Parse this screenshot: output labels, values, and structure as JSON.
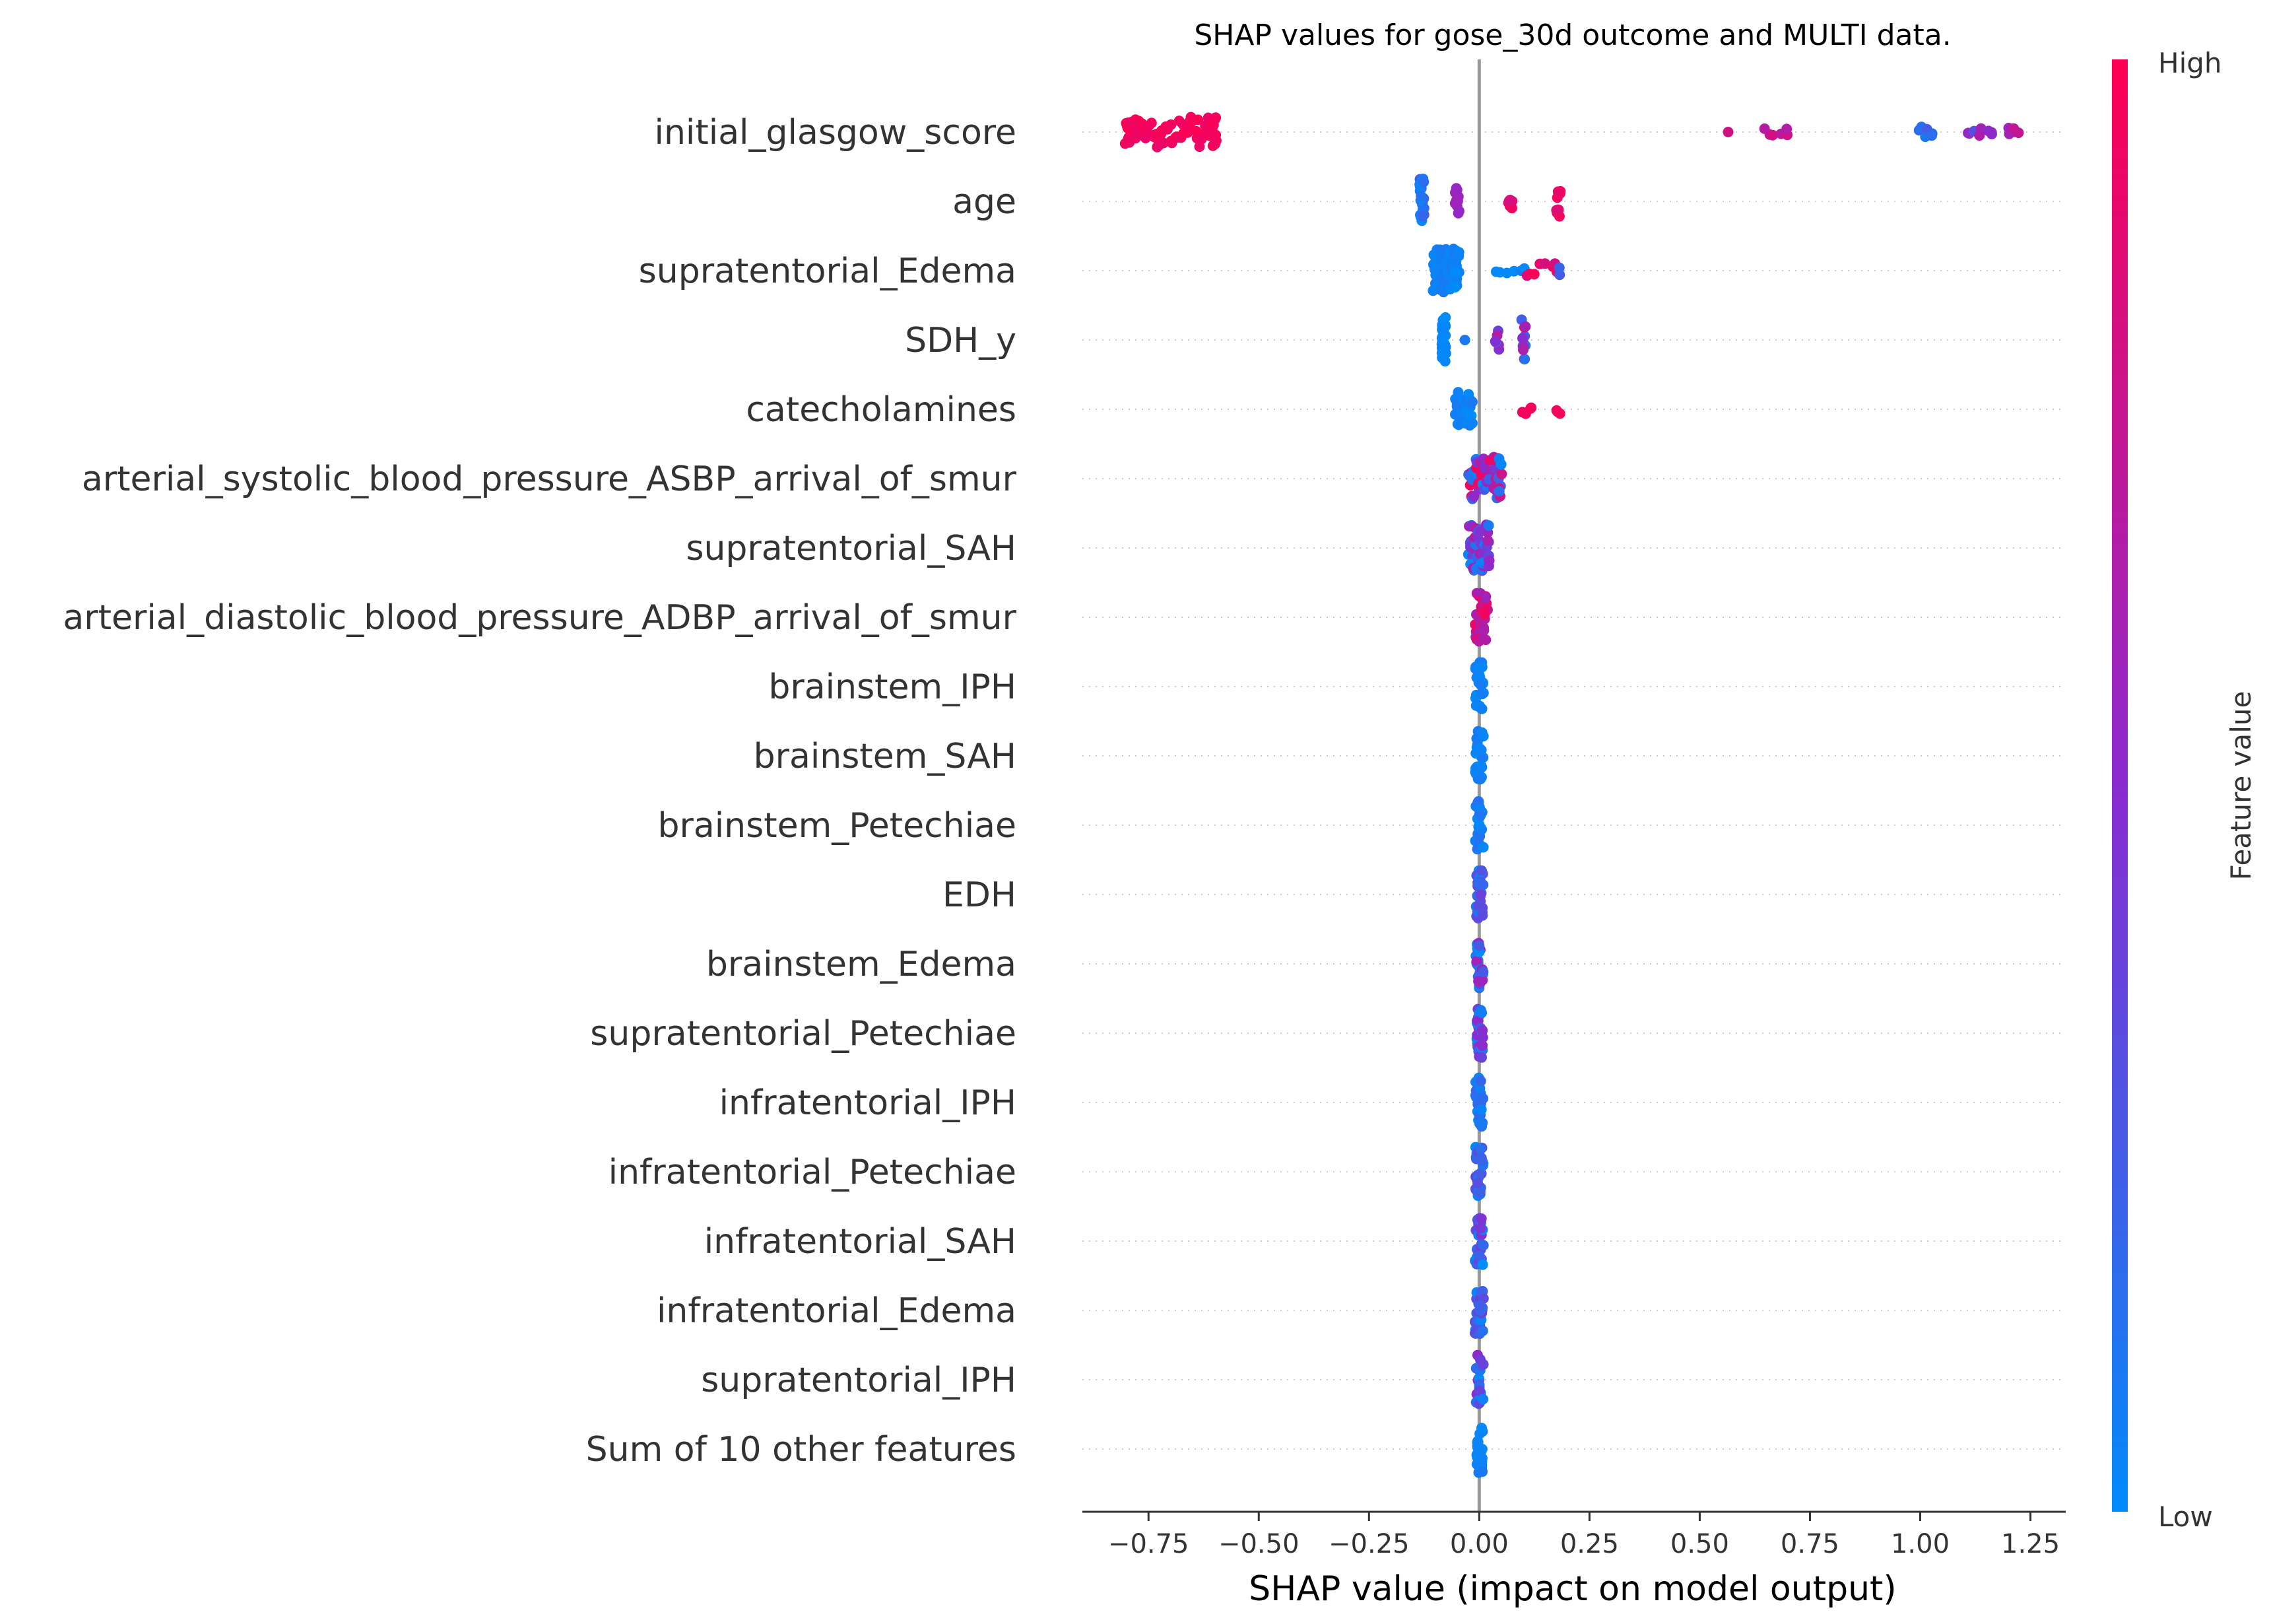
{
  "chart_data": {
    "type": "scatter",
    "subtype": "shap-beeswarm",
    "title": "SHAP values for gose_30d outcome and MULTI data.",
    "xlabel": "SHAP value (impact on model output)",
    "xlim": [
      -0.9,
      1.33
    ],
    "xticks": [
      -0.75,
      -0.5,
      -0.25,
      0.0,
      0.25,
      0.5,
      0.75,
      1.0,
      1.25
    ],
    "xtick_labels": [
      "−0.75",
      "−0.50",
      "−0.25",
      "0.00",
      "0.25",
      "0.50",
      "0.75",
      "1.00",
      "1.25"
    ],
    "zero_line": 0.0,
    "grid": "dotted horizontal rows",
    "colorbar": {
      "label": "Feature value",
      "high_label": "High",
      "low_label": "Low",
      "high_color": "#ff0052",
      "mid_color": "#8a2bd0",
      "low_color": "#008bfb"
    },
    "features": [
      {
        "name": "initial_glasgow_score",
        "clusters": [
          {
            "x": -0.8,
            "x2": -0.6,
            "n": 80,
            "spread": 0.52,
            "c": [
              0.9,
              1.0
            ]
          },
          {
            "x": -0.6,
            "x2": -0.62,
            "n": 1,
            "spread": 0.0,
            "c": [
              0.95,
              0.95
            ]
          },
          {
            "x": 0.56,
            "x2": 0.56,
            "n": 1,
            "spread": 0.0,
            "c": [
              0.8,
              0.8
            ]
          },
          {
            "x": 0.65,
            "x2": 0.7,
            "n": 6,
            "spread": 0.15,
            "c": [
              0.65,
              0.85
            ]
          },
          {
            "x": 1.0,
            "x2": 1.03,
            "n": 6,
            "spread": 0.2,
            "c": [
              0.05,
              0.3
            ]
          },
          {
            "x": 1.11,
            "x2": 1.16,
            "n": 8,
            "spread": 0.2,
            "c": [
              0.3,
              0.75
            ]
          },
          {
            "x": 1.2,
            "x2": 1.22,
            "n": 5,
            "spread": 0.15,
            "c": [
              0.55,
              0.75
            ]
          }
        ]
      },
      {
        "name": "age",
        "clusters": [
          {
            "x": -0.13,
            "x2": -0.13,
            "n": 26,
            "spread": 0.8,
            "c": [
              0.0,
              0.3
            ]
          },
          {
            "x": -0.05,
            "x2": -0.05,
            "n": 10,
            "spread": 0.55,
            "c": [
              0.5,
              0.6
            ]
          },
          {
            "x": 0.07,
            "x2": 0.07,
            "n": 6,
            "spread": 0.25,
            "c": [
              0.8,
              0.95
            ]
          },
          {
            "x": 0.18,
            "x2": 0.18,
            "n": 10,
            "spread": 0.6,
            "c": [
              0.85,
              1.0
            ]
          }
        ]
      },
      {
        "name": "supratentorial_Edema",
        "clusters": [
          {
            "x": -0.1,
            "x2": -0.05,
            "n": 90,
            "spread": 0.75,
            "c": [
              0.0,
              0.1
            ]
          },
          {
            "x": 0.04,
            "x2": 0.1,
            "n": 6,
            "spread": 0.1,
            "c": [
              0.0,
              0.1
            ]
          },
          {
            "x": 0.11,
            "x2": 0.18,
            "n": 8,
            "spread": 0.25,
            "c": [
              0.8,
              1.0
            ]
          },
          {
            "x": 0.18,
            "x2": 0.18,
            "n": 2,
            "spread": 0.2,
            "c": [
              0.2,
              0.3
            ]
          }
        ]
      },
      {
        "name": "SDH_y",
        "clusters": [
          {
            "x": -0.08,
            "x2": -0.08,
            "n": 34,
            "spread": 0.8,
            "c": [
              0.0,
              0.05
            ]
          },
          {
            "x": -0.03,
            "x2": -0.03,
            "n": 1,
            "spread": 0.0,
            "c": [
              0.1,
              0.1
            ]
          },
          {
            "x": 0.04,
            "x2": 0.04,
            "n": 6,
            "spread": 0.35,
            "c": [
              0.1,
              0.7
            ]
          },
          {
            "x": 0.1,
            "x2": 0.1,
            "n": 14,
            "spread": 0.75,
            "c": [
              0.05,
              0.95
            ]
          }
        ]
      },
      {
        "name": "catecholamines",
        "clusters": [
          {
            "x": -0.05,
            "x2": -0.02,
            "n": 40,
            "spread": 0.6,
            "c": [
              0.0,
              0.1
            ]
          },
          {
            "x": 0.1,
            "x2": 0.12,
            "n": 4,
            "spread": 0.2,
            "c": [
              0.9,
              1.0
            ]
          },
          {
            "x": 0.18,
            "x2": 0.18,
            "n": 3,
            "spread": 0.2,
            "c": [
              0.9,
              1.0
            ]
          }
        ]
      },
      {
        "name": "arterial_systolic_blood_pressure_ASBP_arrival_of_smur",
        "clusters": [
          {
            "x": -0.02,
            "x2": 0.05,
            "n": 50,
            "spread": 0.75,
            "c": [
              0.0,
              1.0
            ]
          }
        ]
      },
      {
        "name": "supratentorial_SAH",
        "clusters": [
          {
            "x": -0.02,
            "x2": 0.02,
            "n": 50,
            "spread": 0.8,
            "c": [
              0.0,
              0.7
            ]
          }
        ]
      },
      {
        "name": "arterial_diastolic_blood_pressure_ADBP_arrival_of_smur",
        "clusters": [
          {
            "x": -0.005,
            "x2": 0.015,
            "n": 40,
            "spread": 0.85,
            "c": [
              0.5,
              1.0
            ]
          }
        ]
      },
      {
        "name": "brainstem_IPH",
        "clusters": [
          {
            "x": -0.005,
            "x2": 0.005,
            "n": 30,
            "spread": 0.85,
            "c": [
              0.0,
              0.1
            ]
          }
        ]
      },
      {
        "name": "brainstem_SAH",
        "clusters": [
          {
            "x": -0.005,
            "x2": 0.005,
            "n": 30,
            "spread": 0.85,
            "c": [
              0.0,
              0.1
            ]
          }
        ]
      },
      {
        "name": "brainstem_Petechiae",
        "clusters": [
          {
            "x": -0.005,
            "x2": 0.005,
            "n": 30,
            "spread": 0.85,
            "c": [
              0.0,
              0.15
            ]
          }
        ]
      },
      {
        "name": "EDH",
        "clusters": [
          {
            "x": -0.005,
            "x2": 0.005,
            "n": 30,
            "spread": 0.85,
            "c": [
              0.0,
              0.4
            ]
          }
        ]
      },
      {
        "name": "brainstem_Edema",
        "clusters": [
          {
            "x": -0.005,
            "x2": 0.005,
            "n": 30,
            "spread": 0.85,
            "c": [
              0.0,
              0.6
            ]
          }
        ]
      },
      {
        "name": "supratentorial_Petechiae",
        "clusters": [
          {
            "x": -0.005,
            "x2": 0.005,
            "n": 30,
            "spread": 0.85,
            "c": [
              0.0,
              0.6
            ]
          }
        ]
      },
      {
        "name": "infratentorial_IPH",
        "clusters": [
          {
            "x": -0.005,
            "x2": 0.005,
            "n": 30,
            "spread": 0.85,
            "c": [
              0.0,
              0.2
            ]
          }
        ]
      },
      {
        "name": "infratentorial_Petechiae",
        "clusters": [
          {
            "x": -0.005,
            "x2": 0.005,
            "n": 30,
            "spread": 0.85,
            "c": [
              0.0,
              0.4
            ]
          }
        ]
      },
      {
        "name": "infratentorial_SAH",
        "clusters": [
          {
            "x": -0.005,
            "x2": 0.005,
            "n": 30,
            "spread": 0.85,
            "c": [
              0.0,
              0.5
            ]
          }
        ]
      },
      {
        "name": "infratentorial_Edema",
        "clusters": [
          {
            "x": -0.005,
            "x2": 0.005,
            "n": 30,
            "spread": 0.85,
            "c": [
              0.0,
              0.4
            ]
          }
        ]
      },
      {
        "name": "supratentorial_IPH",
        "clusters": [
          {
            "x": -0.005,
            "x2": 0.005,
            "n": 30,
            "spread": 0.85,
            "c": [
              0.0,
              0.6
            ]
          }
        ]
      },
      {
        "name": "Sum of 10 other features",
        "clusters": [
          {
            "x": -0.005,
            "x2": 0.005,
            "n": 30,
            "spread": 0.85,
            "c": [
              0.0,
              0.1
            ]
          }
        ]
      }
    ]
  }
}
